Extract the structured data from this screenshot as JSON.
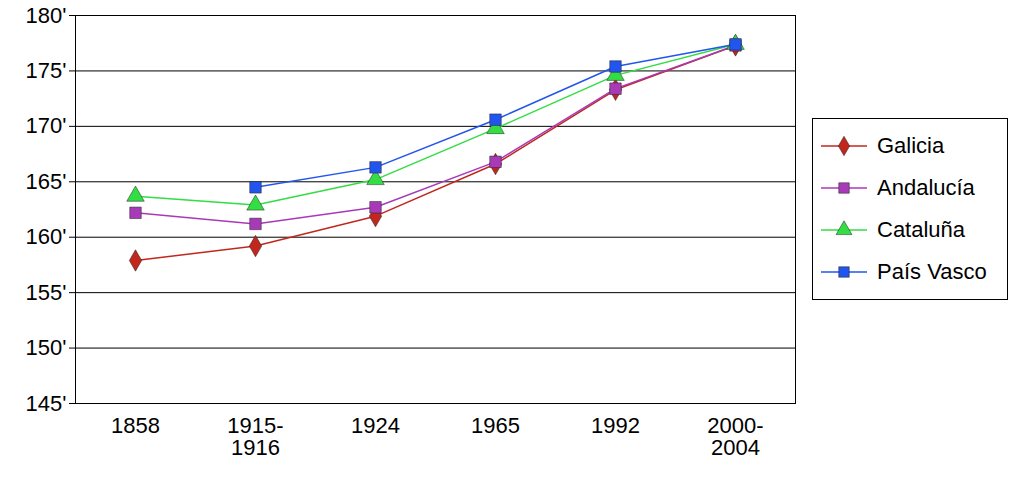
{
  "chart_data": {
    "type": "line",
    "categories": [
      "1858",
      "1915-\n1916",
      "1924",
      "1965",
      "1992",
      "2000-\n2004"
    ],
    "series": [
      {
        "name": "Galicia",
        "color": "#c0281e",
        "marker": "diamond",
        "values": [
          157.9,
          159.2,
          161.9,
          166.6,
          173.3,
          177.3
        ]
      },
      {
        "name": "Andalucía",
        "color": "#a83ab8",
        "marker": "square",
        "values": [
          162.2,
          161.2,
          162.7,
          166.8,
          173.4,
          177.3
        ]
      },
      {
        "name": "Cataluña",
        "color": "#33dd44",
        "marker": "triangle",
        "values": [
          163.7,
          162.9,
          165.2,
          169.8,
          174.6,
          177.4
        ]
      },
      {
        "name": "País Vasco",
        "color": "#2255ee",
        "marker": "square",
        "values": [
          null,
          164.5,
          166.3,
          170.6,
          175.4,
          177.4
        ]
      }
    ],
    "ylim": [
      145,
      180
    ],
    "yticks": [
      {
        "value": 145,
        "label": "145'"
      },
      {
        "value": 150,
        "label": "150'"
      },
      {
        "value": 155,
        "label": "155'"
      },
      {
        "value": 160,
        "label": "160'"
      },
      {
        "value": 165,
        "label": "165'"
      },
      {
        "value": 170,
        "label": "170'"
      },
      {
        "value": 175,
        "label": "175'"
      },
      {
        "value": 180,
        "label": "180'"
      }
    ],
    "grid": true,
    "legend": "right"
  }
}
